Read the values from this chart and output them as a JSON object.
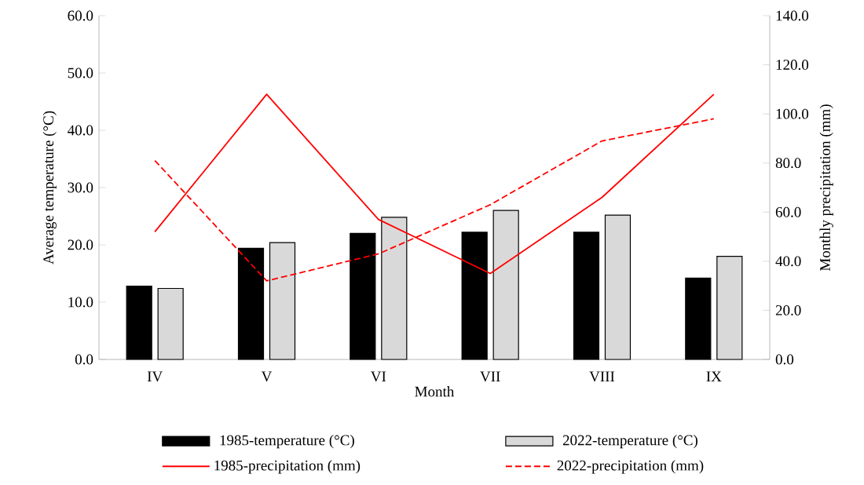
{
  "chart_data": {
    "type": "bar",
    "xlabel": "Month",
    "ylabel": "Average temperature (°C)",
    "y2label": "Monthly precipitation (mm)",
    "categories": [
      "IV",
      "V",
      "VI",
      "VII",
      "VIII",
      "IX"
    ],
    "series": [
      {
        "name": "1985-temperature (°C)",
        "color": "#000000",
        "values": [
          12.8,
          19.4,
          22.0,
          22.2,
          22.2,
          14.2
        ]
      },
      {
        "name": "2022-temperature (°C)",
        "color": "#d9d9d9",
        "values": [
          12.4,
          20.4,
          24.8,
          26.0,
          25.2,
          18.0
        ]
      },
      {
        "name": "1985-precipitation (mm)",
        "type": "line",
        "axis": "y2",
        "line_style": "solid",
        "color": "#ff0000",
        "values": [
          52,
          108,
          57,
          35,
          66,
          108
        ]
      },
      {
        "name": "2022-precipitation (mm)",
        "type": "line",
        "axis": "y2",
        "line_style": "dashed",
        "color": "#ff0000",
        "values": [
          81,
          32,
          43,
          63,
          89,
          98
        ]
      }
    ],
    "ylim": [
      0,
      60
    ],
    "yticks": [
      {
        "value": 0,
        "label": "0.0"
      },
      {
        "value": 10,
        "label": "10.0"
      },
      {
        "value": 20,
        "label": "20.0"
      },
      {
        "value": 30,
        "label": "30.0"
      },
      {
        "value": 40,
        "label": "40.0"
      },
      {
        "value": 50,
        "label": "50.0"
      },
      {
        "value": 60,
        "label": "60.0"
      }
    ],
    "y2lim": [
      0,
      140
    ],
    "y2ticks": [
      {
        "value": 0,
        "label": "0.0"
      },
      {
        "value": 20,
        "label": "20.0"
      },
      {
        "value": 40,
        "label": "40.0"
      },
      {
        "value": 60,
        "label": "60.0"
      },
      {
        "value": 80,
        "label": "80.0"
      },
      {
        "value": 100,
        "label": "100.0"
      },
      {
        "value": 120,
        "label": "120.0"
      },
      {
        "value": 140,
        "label": "140.0"
      }
    ],
    "grid": false,
    "legend": "bottom"
  }
}
